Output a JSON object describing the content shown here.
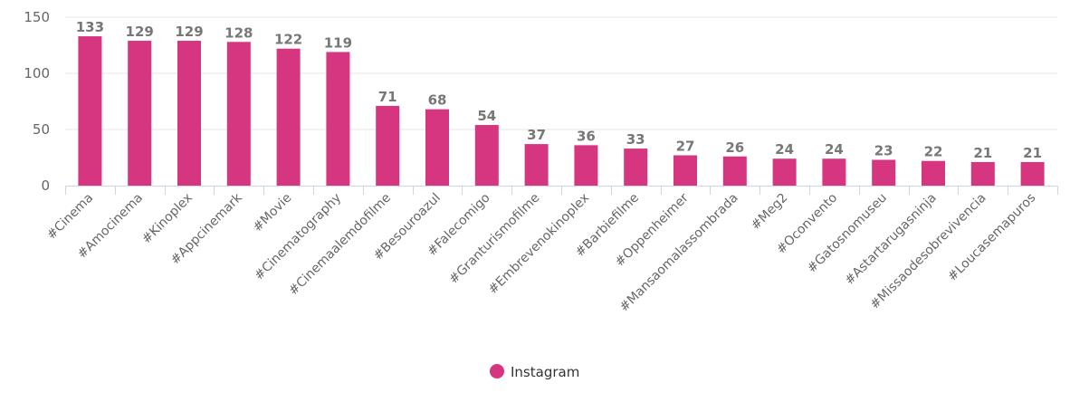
{
  "chart_data": {
    "type": "bar",
    "title": "",
    "xlabel": "",
    "ylabel": "",
    "ylim": [
      0,
      150
    ],
    "yticks": [
      0,
      50,
      100,
      150
    ],
    "grid": true,
    "legend_position": "bottom-center",
    "categories": [
      "#Cinema",
      "#Amocinema",
      "#Kinoplex",
      "#Appcinemark",
      "#Movie",
      "#Cinematography",
      "#Cinemaalemdofilme",
      "#Besouroazul",
      "#Falecomigo",
      "#Granturismofilme",
      "#Embrevenokinoplex",
      "#Barbiefilme",
      "#Oppenheimer",
      "#Mansaomalassombrada",
      "#Meg2",
      "#Oconvento",
      "#Gatosnomuseu",
      "#Astartarugasninja",
      "#Missaodesobrevivencia",
      "#Loucasemapuros"
    ],
    "series": [
      {
        "name": "Instagram",
        "color": "#d6357f",
        "values": [
          133,
          129,
          129,
          128,
          122,
          119,
          71,
          68,
          54,
          37,
          36,
          33,
          27,
          26,
          24,
          24,
          23,
          22,
          21,
          21
        ]
      }
    ]
  }
}
